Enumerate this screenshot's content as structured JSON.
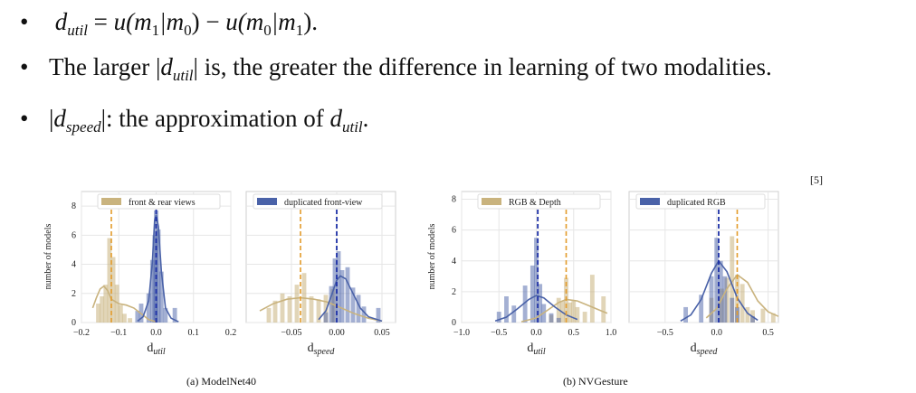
{
  "bullets": [
    {
      "parts": [
        "d",
        "util",
        " = ",
        "u",
        "(m",
        "1",
        "|m",
        "0",
        ") − ",
        "u",
        "(m",
        "0",
        "|m",
        "1",
        ")."
      ]
    },
    {
      "prefix": "The larger ",
      "var": "d",
      "var_sub": "util",
      "suffix": " is, the greater the difference in learning of two modalities."
    },
    {
      "var": "d",
      "var_sub": "speed",
      "suffix_mid": ": the approximation of ",
      "var2": "d",
      "var2_sub": "util",
      "end": "."
    }
  ],
  "reference": "[5]",
  "colors": {
    "tan": "#c9b37e",
    "blue": "#4a62a8",
    "tan_dash": "#e39b2a",
    "blue_dash": "#1c2fa6",
    "grid": "#e6e6e6"
  },
  "figures": [
    {
      "caption": "(a) ModelNet40",
      "ylabel": "number of models",
      "legend": [
        {
          "label": "front & rear views",
          "color": "#c9b37e"
        },
        {
          "label": "duplicated front-view",
          "color": "#4a62a8"
        }
      ],
      "panels": [
        {
          "xlabel": "d",
          "xlabel_sub": "util",
          "xlim": [
            -0.2,
            0.2
          ],
          "ylim": [
            0,
            9
          ],
          "xticks": [
            "−0.2",
            "−0.1",
            "0.0",
            "0.1",
            "0.2"
          ],
          "yticks": [
            "0",
            "2",
            "4",
            "6",
            "8"
          ],
          "tan_mean": -0.12,
          "blue_mean": 0.0,
          "tan_bars": [
            [
              -0.155,
              1.3
            ],
            [
              -0.145,
              1.8
            ],
            [
              -0.135,
              2.6
            ],
            [
              -0.125,
              5.8
            ],
            [
              -0.115,
              4.5
            ],
            [
              -0.105,
              2.6
            ],
            [
              -0.095,
              1.2
            ],
            [
              -0.085,
              0.6
            ],
            [
              -0.07,
              0.3
            ]
          ],
          "blue_bars": [
            [
              -0.05,
              0.8
            ],
            [
              -0.04,
              1.3
            ],
            [
              -0.02,
              2.0
            ],
            [
              -0.01,
              4.3
            ],
            [
              -0.004,
              6.0
            ],
            [
              0.0,
              7.7
            ],
            [
              0.006,
              6.4
            ],
            [
              0.014,
              3.5
            ],
            [
              0.025,
              1.0
            ],
            [
              0.05,
              1.0
            ]
          ],
          "tan_curve": [
            [
              -0.17,
              1.0
            ],
            [
              -0.16,
              1.7
            ],
            [
              -0.15,
              2.3
            ],
            [
              -0.14,
              2.5
            ],
            [
              -0.13,
              2.2
            ],
            [
              -0.12,
              1.6
            ],
            [
              -0.1,
              1.3
            ],
            [
              -0.08,
              1.2
            ],
            [
              -0.06,
              1.0
            ],
            [
              -0.04,
              0.6
            ],
            [
              -0.02,
              0.2
            ],
            [
              0.0,
              0.05
            ]
          ],
          "blue_curve": [
            [
              -0.05,
              0.1
            ],
            [
              -0.035,
              0.4
            ],
            [
              -0.02,
              1.5
            ],
            [
              -0.01,
              4.2
            ],
            [
              -0.004,
              7.0
            ],
            [
              0.0,
              7.4
            ],
            [
              0.006,
              6.6
            ],
            [
              0.014,
              3.5
            ],
            [
              0.025,
              1.0
            ],
            [
              0.04,
              0.3
            ],
            [
              0.06,
              0.05
            ]
          ]
        },
        {
          "xlabel": "d",
          "xlabel_sub": "speed",
          "xlim": [
            -0.1,
            0.065
          ],
          "ylim": [
            0,
            9
          ],
          "xticks": [
            "−0.05",
            "0.00",
            "0.05"
          ],
          "yticks": [],
          "tan_mean": -0.04,
          "blue_mean": 0.0,
          "tan_bars": [
            [
              -0.075,
              1.0
            ],
            [
              -0.068,
              1.5
            ],
            [
              -0.06,
              2.0
            ],
            [
              -0.052,
              1.8
            ],
            [
              -0.044,
              2.6
            ],
            [
              -0.036,
              3.4
            ],
            [
              -0.028,
              1.8
            ],
            [
              -0.02,
              1.6
            ],
            [
              -0.012,
              1.9
            ],
            [
              -0.004,
              2.3
            ]
          ],
          "blue_bars": [
            [
              -0.012,
              0.7
            ],
            [
              -0.006,
              2.5
            ],
            [
              -0.002,
              4.4
            ],
            [
              0.002,
              4.9
            ],
            [
              0.006,
              3.6
            ],
            [
              0.012,
              3.8
            ],
            [
              0.018,
              2.4
            ],
            [
              0.024,
              1.9
            ],
            [
              0.03,
              1.1
            ],
            [
              0.046,
              1.0
            ]
          ],
          "tan_curve": [
            [
              -0.085,
              0.8
            ],
            [
              -0.07,
              1.3
            ],
            [
              -0.055,
              1.6
            ],
            [
              -0.04,
              1.7
            ],
            [
              -0.025,
              1.6
            ],
            [
              -0.01,
              1.4
            ],
            [
              0.005,
              1.0
            ],
            [
              0.02,
              0.6
            ],
            [
              0.035,
              0.3
            ],
            [
              0.05,
              0.1
            ]
          ],
          "blue_curve": [
            [
              -0.02,
              0.2
            ],
            [
              -0.012,
              0.8
            ],
            [
              -0.005,
              2.0
            ],
            [
              0.0,
              2.9
            ],
            [
              0.004,
              3.2
            ],
            [
              0.01,
              3.0
            ],
            [
              0.018,
              2.0
            ],
            [
              0.026,
              1.0
            ],
            [
              0.035,
              0.4
            ],
            [
              0.05,
              0.1
            ]
          ]
        }
      ]
    },
    {
      "caption": "(b) NVGesture",
      "ylabel": "number of models",
      "legend": [
        {
          "label": "RGB & Depth",
          "color": "#c9b37e"
        },
        {
          "label": "duplicated RGB",
          "color": "#4a62a8"
        }
      ],
      "panels": [
        {
          "xlabel": "d",
          "xlabel_sub": "util",
          "xlim": [
            -1.0,
            1.0
          ],
          "ylim": [
            0,
            8.5
          ],
          "xticks": [
            "−1.0",
            "−0.5",
            "0.0",
            "0.5",
            "1.0"
          ],
          "yticks": [
            "0",
            "2",
            "4",
            "6",
            "8"
          ],
          "tan_mean": 0.4,
          "blue_mean": 0.02,
          "tan_bars": [
            [
              0.2,
              0.5
            ],
            [
              0.3,
              1.6
            ],
            [
              0.35,
              1.4
            ],
            [
              0.4,
              2.9
            ],
            [
              0.45,
              1.3
            ],
            [
              0.5,
              1.4
            ],
            [
              0.55,
              1.0
            ],
            [
              0.65,
              0.7
            ],
            [
              0.75,
              3.1
            ],
            [
              0.9,
              1.7
            ]
          ],
          "blue_bars": [
            [
              -0.5,
              0.7
            ],
            [
              -0.4,
              1.7
            ],
            [
              -0.3,
              1.1
            ],
            [
              -0.15,
              2.4
            ],
            [
              -0.05,
              3.7
            ],
            [
              0.0,
              5.5
            ],
            [
              0.05,
              2.5
            ],
            [
              0.1,
              1.2
            ],
            [
              0.2,
              0.6
            ],
            [
              0.3,
              0.3
            ]
          ],
          "tan_curve": [
            [
              -0.2,
              0.05
            ],
            [
              0.0,
              0.3
            ],
            [
              0.15,
              0.8
            ],
            [
              0.3,
              1.3
            ],
            [
              0.4,
              1.5
            ],
            [
              0.55,
              1.4
            ],
            [
              0.7,
              1.1
            ],
            [
              0.85,
              0.8
            ],
            [
              0.95,
              0.6
            ]
          ],
          "blue_curve": [
            [
              -0.55,
              0.1
            ],
            [
              -0.4,
              0.35
            ],
            [
              -0.25,
              0.9
            ],
            [
              -0.1,
              1.5
            ],
            [
              0.0,
              1.75
            ],
            [
              0.1,
              1.6
            ],
            [
              0.25,
              1.0
            ],
            [
              0.4,
              0.5
            ],
            [
              0.55,
              0.2
            ]
          ]
        },
        {
          "xlabel": "d",
          "xlabel_sub": "speed",
          "xlim": [
            -0.85,
            0.6
          ],
          "ylim": [
            0,
            8.5
          ],
          "xticks": [
            "−0.5",
            "0.0",
            "0.5"
          ],
          "yticks": [],
          "tan_mean": 0.2,
          "blue_mean": 0.02,
          "tan_bars": [
            [
              -0.05,
              1.6
            ],
            [
              0.05,
              2.2
            ],
            [
              0.1,
              2.9
            ],
            [
              0.15,
              5.6
            ],
            [
              0.2,
              3.1
            ],
            [
              0.25,
              2.5
            ],
            [
              0.3,
              1.0
            ],
            [
              0.35,
              0.8
            ],
            [
              0.45,
              0.9
            ],
            [
              0.55,
              0.6
            ]
          ],
          "blue_bars": [
            [
              -0.3,
              1.0
            ],
            [
              -0.15,
              1.8
            ],
            [
              -0.05,
              3.0
            ],
            [
              0.0,
              5.5
            ],
            [
              0.04,
              4.0
            ],
            [
              0.08,
              3.0
            ],
            [
              0.15,
              1.6
            ],
            [
              0.2,
              1.0
            ],
            [
              0.35,
              0.4
            ]
          ],
          "tan_curve": [
            [
              -0.1,
              0.3
            ],
            [
              0.0,
              0.9
            ],
            [
              0.1,
              2.2
            ],
            [
              0.2,
              3.1
            ],
            [
              0.3,
              2.6
            ],
            [
              0.4,
              1.4
            ],
            [
              0.5,
              0.7
            ],
            [
              0.6,
              0.4
            ]
          ],
          "blue_curve": [
            [
              -0.35,
              0.1
            ],
            [
              -0.25,
              0.5
            ],
            [
              -0.15,
              1.5
            ],
            [
              -0.05,
              3.2
            ],
            [
              0.02,
              4.0
            ],
            [
              0.1,
              3.3
            ],
            [
              0.2,
              1.6
            ],
            [
              0.3,
              0.6
            ],
            [
              0.4,
              0.15
            ]
          ]
        }
      ]
    }
  ]
}
